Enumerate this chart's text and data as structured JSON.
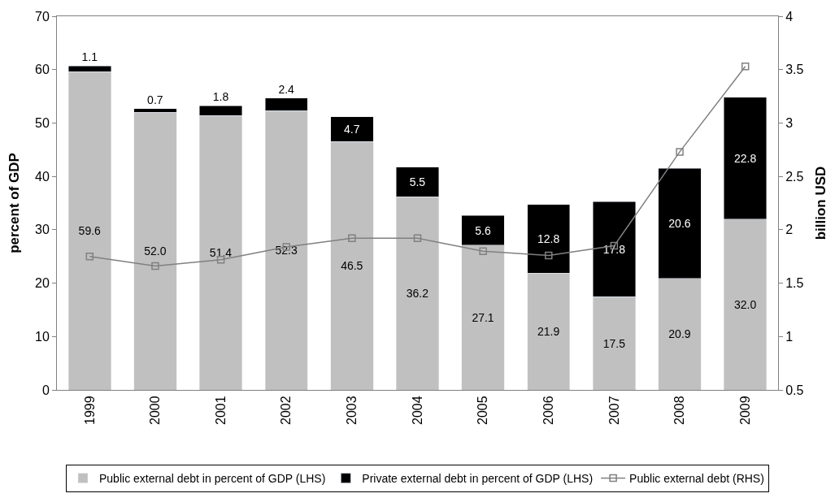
{
  "chart_data": {
    "type": "bar",
    "stacked": true,
    "ylabel": "percent of GDP",
    "y2label": "billion USD",
    "categories": [
      "1999",
      "2000",
      "2001",
      "2002",
      "2003",
      "2004",
      "2005",
      "2006",
      "2007",
      "2008",
      "2009"
    ],
    "series": [
      {
        "name": "Public external debt in percent of GDP (LHS)",
        "color": "#c0c0c0",
        "values": [
          59.6,
          52.0,
          51.4,
          52.3,
          46.5,
          36.2,
          27.1,
          21.9,
          17.5,
          20.9,
          32.0
        ],
        "value_labels": [
          "59.6",
          "52.0",
          "51.4",
          "52.3",
          "46.5",
          "36.2",
          "27.1",
          "21.9",
          "17.5",
          "20.9",
          "32.0"
        ]
      },
      {
        "name": "Private external debt in percent of GDP (LHS)",
        "color": "#000000",
        "values": [
          1.1,
          0.7,
          1.8,
          2.4,
          4.7,
          5.5,
          5.6,
          12.8,
          17.8,
          20.6,
          22.8
        ],
        "value_labels": [
          "1.1",
          "0.7",
          "1.8",
          "2.4",
          "4.7",
          "5.5",
          "5.6",
          "12.8",
          "17.8",
          "20.6",
          "22.8"
        ]
      },
      {
        "name": "Public external debt (RHS)",
        "type": "line",
        "axis": "y2",
        "color": "#808080",
        "marker": "square",
        "values": [
          1.75,
          1.66,
          1.72,
          1.84,
          1.92,
          1.92,
          1.8,
          1.76,
          1.85,
          2.73,
          3.53
        ]
      }
    ],
    "ylim": [
      0,
      70
    ],
    "yticks": [
      0,
      10,
      20,
      30,
      40,
      50,
      60,
      70
    ],
    "y2lim": [
      0.5,
      4
    ],
    "y2ticks": [
      0.5,
      1,
      1.5,
      2,
      2.5,
      3,
      3.5,
      4
    ],
    "legend": "bottom"
  }
}
